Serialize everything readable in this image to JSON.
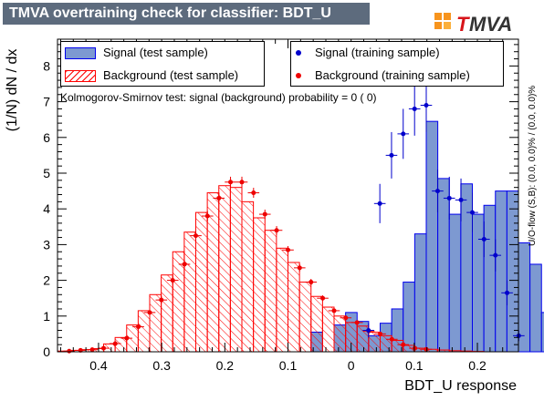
{
  "banner": {
    "title": "TMVA overtraining check for classifier: BDT_U"
  },
  "logo": {
    "text": "TMVA"
  },
  "legend": {
    "signal_test": "Signal (test sample)",
    "background_test": "Background (test sample)",
    "signal_train": "Signal (training sample)",
    "background_train": "Background (training sample)"
  },
  "ks_text": "Kolmogorov-Smirnov test: signal (background) probability =     0 (     0)",
  "overflow_text": "U/O-flow (S,B): (0.0, 0.0)% / (0.0, 0.0)%",
  "chart_data": {
    "type": "bar",
    "xlabel": "BDT_U response",
    "ylabel": "(1/N) dN / dx",
    "xlim": [
      0.465,
      -0.265
    ],
    "ylim": [
      0,
      8.75
    ],
    "x_ticks": [
      {
        "value": 0.4,
        "label": "0.4"
      },
      {
        "value": 0.3,
        "label": "0.3"
      },
      {
        "value": 0.2,
        "label": "0.2"
      },
      {
        "value": 0.1,
        "label": "0.1"
      },
      {
        "value": 0.0,
        "label": "0"
      },
      {
        "value": -0.1,
        "label": "0.1"
      },
      {
        "value": -0.2,
        "label": "0.2"
      }
    ],
    "y_ticks": [
      0,
      1,
      2,
      3,
      4,
      5,
      6,
      7,
      8
    ],
    "bin_edges_start": 0.465,
    "bin_width": 0.01825,
    "colors": {
      "signal_fill": "#7d99d1",
      "signal_line": "#0000ee",
      "background_line": "#ff0000",
      "signal_points": "#0000cc",
      "background_points": "#ee0000"
    },
    "series": [
      {
        "name": "Signal (test sample)",
        "values": [
          0,
          0,
          0,
          0,
          0,
          0,
          0,
          0,
          0,
          0,
          0,
          0,
          0,
          0,
          0,
          0,
          0,
          0,
          0,
          0,
          0,
          0,
          0.55,
          0,
          0.75,
          1.1,
          0.85,
          0.45,
          0.8,
          1.2,
          1.95,
          3.3,
          6.45,
          4.85,
          3.85,
          4.7,
          3.85,
          4.1,
          4.5,
          4.5,
          3.05,
          2.45,
          1.1,
          2.9
        ]
      },
      {
        "name": "Background (test sample)",
        "values": [
          0.02,
          0.04,
          0.06,
          0.09,
          0.22,
          0.4,
          0.75,
          1.15,
          1.6,
          2.15,
          2.8,
          3.35,
          3.9,
          4.45,
          4.65,
          4.6,
          4.2,
          3.75,
          3.4,
          2.9,
          2.5,
          1.95,
          1.55,
          1.25,
          1.0,
          0.82,
          0.72,
          0.55,
          0.45,
          0.32,
          0.18,
          0.1,
          0.07,
          0.05,
          0.03,
          0.02,
          0.01,
          0,
          0,
          0,
          0,
          0,
          0,
          0
        ]
      },
      {
        "name": "Signal (training sample)",
        "x": [
          -0.0275,
          -0.0455,
          -0.064,
          -0.0825,
          -0.1005,
          -0.119,
          -0.137,
          -0.1555,
          -0.174,
          -0.192,
          -0.2105,
          -0.2285,
          -0.247,
          -0.2655
        ],
        "values": [
          0.6,
          4.15,
          5.5,
          6.1,
          6.8,
          6.9,
          4.5,
          4.3,
          4.25,
          3.9,
          3.15,
          2.7,
          1.65,
          0.45
        ],
        "errors": [
          0.2,
          0.55,
          0.65,
          0.7,
          0.75,
          0.75,
          0.6,
          0.6,
          0.6,
          0.55,
          0.5,
          0.45,
          0.35,
          0.15
        ]
      },
      {
        "name": "Background (training sample)",
        "x": [
          0.4465,
          0.4285,
          0.41,
          0.392,
          0.3735,
          0.3555,
          0.337,
          0.319,
          0.3005,
          0.2825,
          0.264,
          0.246,
          0.2275,
          0.2095,
          0.191,
          0.173,
          0.1545,
          0.1365,
          0.118,
          0.1,
          0.0815,
          0.0635,
          0.045,
          0.027,
          0.0085,
          -0.0095,
          -0.028,
          -0.046,
          -0.0645,
          -0.0825,
          -0.101,
          -0.119
        ],
        "values": [
          0.02,
          0.04,
          0.06,
          0.1,
          0.23,
          0.38,
          0.7,
          1.1,
          1.45,
          2.0,
          2.45,
          3.25,
          3.8,
          4.3,
          4.75,
          4.75,
          4.45,
          3.85,
          3.4,
          2.85,
          2.35,
          1.95,
          1.5,
          1.15,
          0.95,
          0.82,
          0.58,
          0.5,
          0.35,
          0.2,
          0.1,
          0.07
        ],
        "errors": [
          0.01,
          0.02,
          0.02,
          0.03,
          0.04,
          0.05,
          0.07,
          0.09,
          0.1,
          0.11,
          0.12,
          0.13,
          0.14,
          0.14,
          0.15,
          0.15,
          0.14,
          0.13,
          0.12,
          0.11,
          0.1,
          0.09,
          0.08,
          0.07,
          0.06,
          0.06,
          0.05,
          0.05,
          0.04,
          0.03,
          0.02,
          0.02
        ]
      }
    ]
  }
}
